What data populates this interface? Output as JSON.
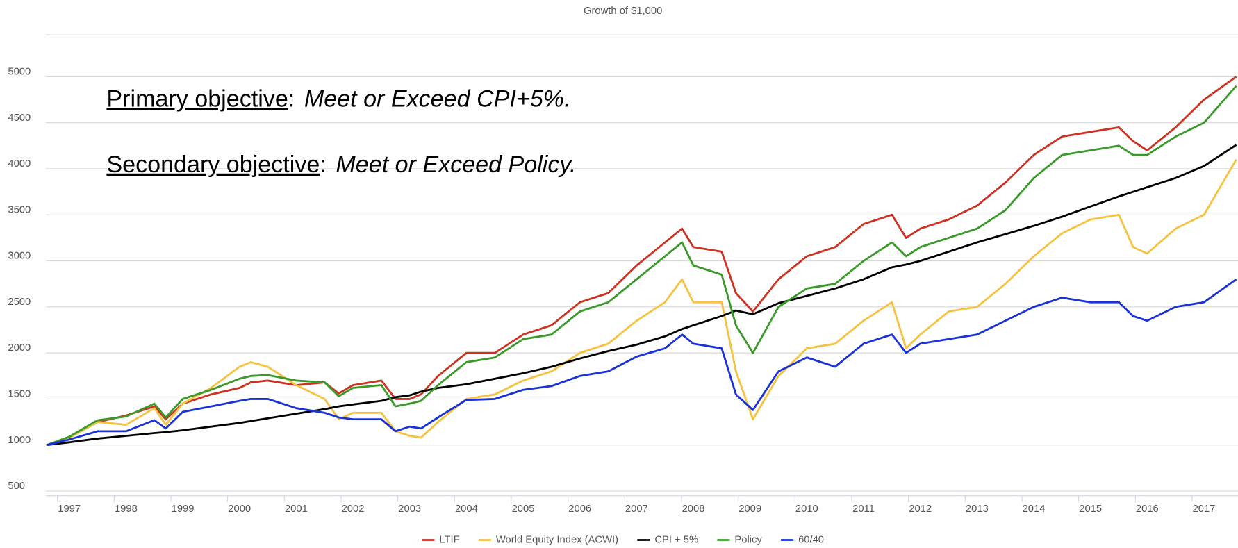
{
  "chart_data": {
    "type": "line",
    "title": "Growth of $1,000",
    "x": [
      1996.6,
      1997.0,
      1997.5,
      1998.0,
      1998.5,
      1998.7,
      1999.0,
      1999.5,
      2000.0,
      2000.2,
      2000.5,
      2001.0,
      2001.5,
      2001.75,
      2002.0,
      2002.5,
      2002.75,
      2003.0,
      2003.2,
      2003.5,
      2004.0,
      2004.5,
      2005.0,
      2005.5,
      2006.0,
      2006.5,
      2007.0,
      2007.5,
      2007.8,
      2008.0,
      2008.5,
      2008.75,
      2009.05,
      2009.5,
      2010.0,
      2010.5,
      2011.0,
      2011.5,
      2011.75,
      2012.0,
      2012.5,
      2013.0,
      2013.5,
      2014.0,
      2014.5,
      2015.0,
      2015.5,
      2015.75,
      2016.0,
      2016.5,
      2017.0,
      2017.57
    ],
    "series": [
      {
        "name": "LTIF",
        "color": "#cc3322",
        "values": [
          1000,
          1080,
          1250,
          1320,
          1420,
          1280,
          1450,
          1550,
          1620,
          1680,
          1700,
          1650,
          1680,
          1560,
          1650,
          1700,
          1500,
          1500,
          1550,
          1750,
          2000,
          2000,
          2200,
          2300,
          2550,
          2650,
          2950,
          3200,
          3350,
          3150,
          3100,
          2650,
          2450,
          2800,
          3050,
          3150,
          3400,
          3500,
          3250,
          3350,
          3450,
          3600,
          3850,
          4150,
          4350,
          4400,
          4450,
          4300,
          4200,
          4450,
          4750,
          5000
        ]
      },
      {
        "name": "World Equity Index (ACWI)",
        "color": "#f5c242",
        "values": [
          1000,
          1080,
          1250,
          1220,
          1400,
          1220,
          1450,
          1620,
          1850,
          1900,
          1850,
          1650,
          1500,
          1280,
          1350,
          1350,
          1150,
          1100,
          1080,
          1250,
          1500,
          1550,
          1700,
          1800,
          2000,
          2100,
          2350,
          2550,
          2800,
          2550,
          2550,
          1800,
          1280,
          1750,
          2050,
          2100,
          2350,
          2550,
          2050,
          2200,
          2450,
          2500,
          2750,
          3050,
          3300,
          3450,
          3500,
          3150,
          3080,
          3350,
          3500,
          4100
        ]
      },
      {
        "name": "CPI + 5%",
        "color": "#000000",
        "values": [
          1000,
          1030,
          1070,
          1100,
          1130,
          1140,
          1160,
          1200,
          1240,
          1260,
          1290,
          1340,
          1390,
          1420,
          1440,
          1480,
          1520,
          1540,
          1580,
          1620,
          1660,
          1720,
          1780,
          1850,
          1940,
          2020,
          2090,
          2180,
          2260,
          2300,
          2400,
          2460,
          2420,
          2540,
          2620,
          2700,
          2800,
          2930,
          2960,
          3000,
          3100,
          3200,
          3290,
          3380,
          3480,
          3590,
          3700,
          3750,
          3800,
          3900,
          4030,
          4260
        ]
      },
      {
        "name": "Policy",
        "color": "#3a9a2a",
        "values": [
          1000,
          1090,
          1270,
          1310,
          1450,
          1300,
          1500,
          1600,
          1720,
          1750,
          1760,
          1700,
          1680,
          1530,
          1620,
          1650,
          1420,
          1450,
          1480,
          1650,
          1900,
          1950,
          2150,
          2200,
          2450,
          2550,
          2800,
          3050,
          3200,
          2950,
          2850,
          2300,
          2000,
          2500,
          2700,
          2750,
          3000,
          3200,
          3050,
          3150,
          3250,
          3350,
          3550,
          3900,
          4150,
          4200,
          4250,
          4150,
          4150,
          4350,
          4500,
          4900
        ]
      },
      {
        "name": "60/40",
        "color": "#1a33d6",
        "values": [
          1000,
          1060,
          1150,
          1150,
          1270,
          1180,
          1360,
          1420,
          1480,
          1500,
          1500,
          1400,
          1350,
          1300,
          1280,
          1280,
          1150,
          1200,
          1180,
          1300,
          1490,
          1500,
          1600,
          1640,
          1750,
          1800,
          1960,
          2050,
          2200,
          2100,
          2050,
          1550,
          1380,
          1800,
          1950,
          1850,
          2100,
          2200,
          2000,
          2100,
          2150,
          2200,
          2350,
          2500,
          2600,
          2550,
          2550,
          2400,
          2350,
          2500,
          2550,
          2800
        ]
      }
    ],
    "xlim": [
      1996.6,
      2017.6
    ],
    "xticks": [
      1997,
      1998,
      1999,
      2000,
      2001,
      2002,
      2003,
      2004,
      2005,
      2006,
      2007,
      2008,
      2009,
      2010,
      2011,
      2012,
      2013,
      2014,
      2015,
      2016,
      2017
    ],
    "ylim": [
      500,
      5500
    ],
    "yticks": [
      500,
      1000,
      1500,
      2000,
      2500,
      3000,
      3500,
      4000,
      4500,
      5000
    ],
    "grid": true,
    "legend": "bottom",
    "annotations": [
      {
        "label": "Primary objective",
        "separator": ":",
        "text": "Meet or Exceed CPI+5%."
      },
      {
        "label": "Secondary objective",
        "separator": ":",
        "text": "Meet or Exceed Policy."
      }
    ]
  }
}
